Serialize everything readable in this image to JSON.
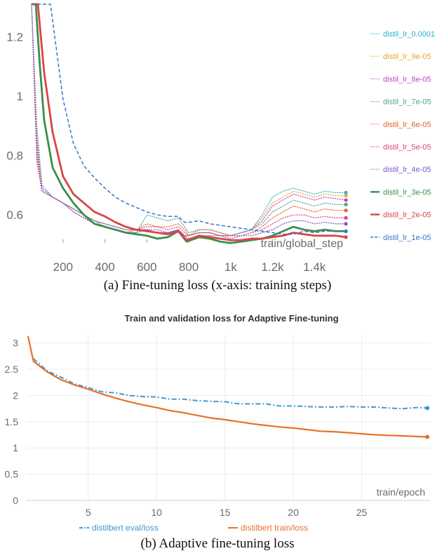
{
  "chart_data": [
    {
      "type": "line",
      "caption": "(a) Fine-tuning loss (x-axis: training steps)",
      "xlabel": "train/global_step",
      "xlim": [
        50,
        1560
      ],
      "ylim": [
        0.52,
        1.31
      ],
      "xticks": [
        {
          "v": 200,
          "label": "200"
        },
        {
          "v": 400,
          "label": "400"
        },
        {
          "v": 600,
          "label": "600"
        },
        {
          "v": 800,
          "label": "800"
        },
        {
          "v": 1000,
          "label": "1k"
        },
        {
          "v": 1200,
          "label": "1.2k"
        },
        {
          "v": 1400,
          "label": "1.4k"
        }
      ],
      "yticks": [
        {
          "v": 0.6,
          "label": "0.6"
        },
        {
          "v": 0.8,
          "label": "0.8"
        },
        {
          "v": 1,
          "label": "1"
        },
        {
          "v": 1.2,
          "label": "1.2"
        }
      ],
      "grid": false,
      "legend_position": "right",
      "series": [
        {
          "name": "distil_lr_0.0001",
          "color": "#29b0d6",
          "style": "dotted",
          "width": 1.2,
          "x": [
            50,
            75,
            100,
            150,
            200,
            250,
            300,
            350,
            400,
            450,
            500,
            550,
            600,
            650,
            700,
            750,
            780,
            800,
            850,
            900,
            950,
            1000,
            1050,
            1100,
            1150,
            1200,
            1250,
            1300,
            1350,
            1400,
            1450,
            1500,
            1550
          ],
          "y": [
            1.31,
            0.9,
            0.7,
            0.66,
            0.64,
            0.62,
            0.6,
            0.58,
            0.57,
            0.56,
            0.55,
            0.55,
            0.55,
            0.54,
            0.54,
            0.55,
            0.53,
            0.53,
            0.54,
            0.54,
            0.53,
            0.53,
            0.54,
            0.55,
            0.6,
            0.66,
            0.68,
            0.69,
            0.68,
            0.67,
            0.68,
            0.675,
            0.675
          ]
        },
        {
          "name": "distil_lr_9e-05",
          "color": "#e8a52f",
          "style": "dotted",
          "width": 1.2,
          "x": [
            50,
            75,
            100,
            150,
            200,
            250,
            300,
            350,
            400,
            450,
            500,
            550,
            600,
            650,
            700,
            750,
            780,
            800,
            850,
            900,
            950,
            1000,
            1050,
            1100,
            1150,
            1200,
            1250,
            1300,
            1350,
            1400,
            1450,
            1500,
            1550
          ],
          "y": [
            1.31,
            0.88,
            0.69,
            0.66,
            0.64,
            0.62,
            0.6,
            0.58,
            0.57,
            0.56,
            0.55,
            0.55,
            0.55,
            0.54,
            0.54,
            0.55,
            0.53,
            0.53,
            0.54,
            0.54,
            0.53,
            0.53,
            0.54,
            0.55,
            0.59,
            0.64,
            0.66,
            0.68,
            0.67,
            0.66,
            0.67,
            0.665,
            0.665
          ]
        },
        {
          "name": "distil_lr_8e-05",
          "color": "#c542c5",
          "style": "dotted",
          "width": 1.2,
          "x": [
            50,
            75,
            100,
            150,
            200,
            250,
            300,
            350,
            400,
            450,
            500,
            550,
            600,
            650,
            700,
            750,
            780,
            800,
            850,
            900,
            950,
            1000,
            1050,
            1100,
            1150,
            1200,
            1250,
            1300,
            1350,
            1400,
            1450,
            1500,
            1550
          ],
          "y": [
            1.31,
            0.86,
            0.69,
            0.66,
            0.64,
            0.62,
            0.6,
            0.58,
            0.57,
            0.56,
            0.55,
            0.55,
            0.55,
            0.54,
            0.54,
            0.55,
            0.53,
            0.53,
            0.54,
            0.54,
            0.53,
            0.53,
            0.54,
            0.55,
            0.58,
            0.63,
            0.65,
            0.67,
            0.66,
            0.65,
            0.66,
            0.655,
            0.65
          ]
        },
        {
          "name": "distil_lr_7e-05",
          "color": "#4aa88b",
          "style": "dotted",
          "width": 1.2,
          "x": [
            50,
            75,
            100,
            150,
            200,
            250,
            300,
            350,
            400,
            450,
            500,
            550,
            600,
            650,
            700,
            750,
            780,
            800,
            850,
            900,
            950,
            1000,
            1050,
            1100,
            1150,
            1200,
            1250,
            1300,
            1350,
            1400,
            1450,
            1500,
            1550
          ],
          "y": [
            1.31,
            0.84,
            0.68,
            0.66,
            0.64,
            0.62,
            0.6,
            0.58,
            0.56,
            0.55,
            0.54,
            0.54,
            0.6,
            0.59,
            0.58,
            0.59,
            0.56,
            0.54,
            0.55,
            0.55,
            0.54,
            0.53,
            0.54,
            0.55,
            0.57,
            0.61,
            0.63,
            0.65,
            0.64,
            0.63,
            0.64,
            0.635,
            0.635
          ]
        },
        {
          "name": "distil_lr_6e-05",
          "color": "#e0622b",
          "style": "dotted",
          "width": 1.2,
          "x": [
            50,
            75,
            100,
            150,
            200,
            250,
            300,
            350,
            400,
            450,
            500,
            550,
            600,
            650,
            700,
            750,
            780,
            800,
            850,
            900,
            950,
            1000,
            1050,
            1100,
            1150,
            1200,
            1250,
            1300,
            1350,
            1400,
            1450,
            1500,
            1550
          ],
          "y": [
            1.31,
            0.82,
            0.68,
            0.66,
            0.64,
            0.61,
            0.59,
            0.57,
            0.56,
            0.55,
            0.54,
            0.55,
            0.57,
            0.56,
            0.56,
            0.57,
            0.55,
            0.53,
            0.55,
            0.55,
            0.54,
            0.53,
            0.53,
            0.54,
            0.56,
            0.59,
            0.61,
            0.63,
            0.62,
            0.61,
            0.62,
            0.615,
            0.615
          ]
        },
        {
          "name": "distil_lr_5e-05",
          "color": "#e0457b",
          "style": "dotted",
          "width": 1.2,
          "x": [
            50,
            75,
            100,
            150,
            200,
            250,
            300,
            350,
            400,
            450,
            500,
            550,
            600,
            650,
            700,
            750,
            780,
            800,
            850,
            900,
            950,
            1000,
            1050,
            1100,
            1150,
            1200,
            1250,
            1300,
            1350,
            1400,
            1450,
            1500,
            1550
          ],
          "y": [
            1.31,
            0.8,
            0.68,
            0.66,
            0.64,
            0.61,
            0.59,
            0.57,
            0.56,
            0.55,
            0.54,
            0.55,
            0.56,
            0.56,
            0.55,
            0.56,
            0.54,
            0.53,
            0.54,
            0.54,
            0.53,
            0.53,
            0.53,
            0.54,
            0.55,
            0.57,
            0.59,
            0.6,
            0.6,
            0.59,
            0.595,
            0.59,
            0.59
          ]
        },
        {
          "name": "distil_lr_4e-05",
          "color": "#7e57c2",
          "style": "dotted",
          "width": 1.2,
          "x": [
            50,
            75,
            100,
            150,
            200,
            250,
            300,
            350,
            400,
            450,
            500,
            550,
            600,
            650,
            700,
            750,
            780,
            800,
            850,
            900,
            950,
            1000,
            1050,
            1100,
            1150,
            1200,
            1250,
            1300,
            1350,
            1400,
            1450,
            1500,
            1550
          ],
          "y": [
            1.31,
            0.78,
            0.68,
            0.66,
            0.64,
            0.61,
            0.59,
            0.57,
            0.56,
            0.55,
            0.54,
            0.54,
            0.55,
            0.55,
            0.54,
            0.55,
            0.53,
            0.52,
            0.53,
            0.53,
            0.53,
            0.52,
            0.53,
            0.53,
            0.54,
            0.55,
            0.57,
            0.58,
            0.58,
            0.57,
            0.575,
            0.57,
            0.57
          ]
        },
        {
          "name": "distil_lr_3e-05",
          "color": "#3a8f4b",
          "style": "solid",
          "width": 2.8,
          "x": [
            50,
            70,
            90,
            110,
            150,
            200,
            250,
            300,
            350,
            400,
            450,
            500,
            550,
            600,
            650,
            700,
            750,
            790,
            850,
            900,
            950,
            1000,
            1050,
            1100,
            1150,
            1200,
            1250,
            1300,
            1350,
            1400,
            1450,
            1500,
            1550
          ],
          "y": [
            1.31,
            1.31,
            1.1,
            0.92,
            0.76,
            0.69,
            0.64,
            0.6,
            0.57,
            0.56,
            0.55,
            0.54,
            0.535,
            0.53,
            0.52,
            0.525,
            0.545,
            0.51,
            0.525,
            0.52,
            0.51,
            0.505,
            0.51,
            0.515,
            0.52,
            0.53,
            0.545,
            0.56,
            0.55,
            0.545,
            0.55,
            0.545,
            0.545
          ]
        },
        {
          "name": "distil_lr_2e-05",
          "color": "#d94545",
          "style": "solid",
          "width": 2.8,
          "x": [
            50,
            80,
            110,
            150,
            200,
            250,
            300,
            350,
            400,
            450,
            500,
            550,
            600,
            650,
            700,
            750,
            790,
            850,
            900,
            950,
            1000,
            1050,
            1100,
            1150,
            1200,
            1250,
            1300,
            1350,
            1400,
            1450,
            1500,
            1550
          ],
          "y": [
            1.31,
            1.31,
            1.08,
            0.88,
            0.73,
            0.67,
            0.64,
            0.61,
            0.595,
            0.575,
            0.56,
            0.55,
            0.545,
            0.54,
            0.535,
            0.545,
            0.515,
            0.53,
            0.525,
            0.52,
            0.515,
            0.515,
            0.52,
            0.52,
            0.525,
            0.53,
            0.54,
            0.535,
            0.53,
            0.53,
            0.53,
            0.525
          ]
        },
        {
          "name": "distil_lr_1e-05",
          "color": "#3c72c9",
          "style": "dashed",
          "width": 1.5,
          "x": [
            50,
            100,
            140,
            200,
            250,
            300,
            350,
            400,
            450,
            500,
            550,
            600,
            650,
            700,
            750,
            780,
            800,
            850,
            900,
            950,
            1000,
            1050,
            1100,
            1150,
            1200,
            1250,
            1300,
            1350,
            1400,
            1450,
            1500,
            1550
          ],
          "y": [
            1.31,
            1.31,
            1.31,
            0.99,
            0.84,
            0.765,
            0.725,
            0.69,
            0.66,
            0.64,
            0.625,
            0.61,
            0.6,
            0.595,
            0.595,
            0.575,
            0.575,
            0.58,
            0.57,
            0.565,
            0.56,
            0.555,
            0.55,
            0.545,
            0.54,
            0.535,
            0.535,
            0.545,
            0.54,
            0.545,
            0.545,
            0.545
          ]
        }
      ]
    },
    {
      "type": "line",
      "title": "Train and validation loss for Adaptive Fine-tuning",
      "caption": "(b) Adaptive fine-tuning loss",
      "xlabel": "train/epoch",
      "xlim": [
        0.5,
        30
      ],
      "ylim": [
        0,
        3.25
      ],
      "xticks": [
        5,
        10,
        15,
        20,
        25
      ],
      "yticks": [
        0,
        0.5,
        1,
        1.5,
        2,
        2.5,
        3
      ],
      "grid": true,
      "legend_position": "bottom",
      "series": [
        {
          "name": "distilbert eval/loss",
          "color": "#3c9ad8",
          "style": "dashdot",
          "width": 2,
          "x": [
            1,
            2,
            3,
            4,
            5,
            6,
            7,
            8,
            9,
            10,
            11,
            12,
            13,
            14,
            15,
            16,
            17,
            18,
            19,
            20,
            21,
            22,
            23,
            24,
            25,
            26,
            27,
            28,
            29,
            29.8
          ],
          "y": [
            2.7,
            2.47,
            2.35,
            2.22,
            2.15,
            2.07,
            2.05,
            2.0,
            1.98,
            1.97,
            1.93,
            1.93,
            1.9,
            1.89,
            1.88,
            1.84,
            1.84,
            1.84,
            1.8,
            1.8,
            1.79,
            1.78,
            1.78,
            1.79,
            1.78,
            1.78,
            1.76,
            1.75,
            1.77,
            1.76
          ]
        },
        {
          "name": "distilbert train/loss",
          "color": "#e8702a",
          "style": "solid",
          "width": 2.2,
          "x": [
            0.6,
            1,
            2,
            3,
            4,
            5,
            6,
            7,
            8,
            9,
            10,
            11,
            12,
            13,
            14,
            15,
            16,
            17,
            18,
            19,
            20,
            21,
            22,
            23,
            24,
            25,
            26,
            27,
            28,
            29,
            29.8
          ],
          "y": [
            3.13,
            2.65,
            2.45,
            2.3,
            2.2,
            2.12,
            2.03,
            1.95,
            1.88,
            1.82,
            1.77,
            1.71,
            1.67,
            1.62,
            1.57,
            1.54,
            1.5,
            1.46,
            1.43,
            1.4,
            1.38,
            1.35,
            1.32,
            1.31,
            1.29,
            1.27,
            1.25,
            1.24,
            1.23,
            1.22,
            1.21
          ]
        }
      ]
    }
  ]
}
